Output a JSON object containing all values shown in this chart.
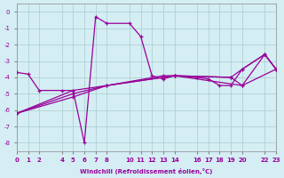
{
  "xlabel": "Windchill (Refroidissement éolien,°C)",
  "background_color": "#d4eef4",
  "grid_color": "#aacccc",
  "line_color": "#990099",
  "xlim": [
    0,
    23
  ],
  "ylim": [
    -8.5,
    0.5
  ],
  "xticks": [
    0,
    1,
    2,
    4,
    5,
    6,
    7,
    8,
    10,
    11,
    12,
    13,
    14,
    16,
    17,
    18,
    19,
    20,
    22,
    23
  ],
  "yticks": [
    0,
    -1,
    -2,
    -3,
    -4,
    -5,
    -6,
    -7,
    -8
  ],
  "s1x": [
    0,
    1,
    2,
    4,
    5,
    6,
    7,
    8,
    10,
    11,
    12,
    13,
    14,
    16,
    17,
    18,
    19,
    20,
    22,
    23
  ],
  "s1y": [
    -3.7,
    -3.8,
    -4.8,
    -4.8,
    -4.8,
    -8.0,
    -0.3,
    -0.7,
    -0.7,
    -1.5,
    -3.9,
    -4.1,
    -3.9,
    -4.0,
    -4.1,
    -4.5,
    -4.5,
    -3.5,
    -2.6,
    -3.5
  ],
  "s2x": [
    0,
    5,
    8,
    13,
    14,
    19,
    20,
    22,
    23
  ],
  "s2y": [
    -6.2,
    -5.0,
    -4.5,
    -3.9,
    -3.9,
    -4.0,
    -3.5,
    -2.6,
    -3.5
  ],
  "s3x": [
    0,
    5,
    8,
    14,
    19,
    20,
    23
  ],
  "s3y": [
    -6.2,
    -5.2,
    -4.5,
    -3.9,
    -4.0,
    -4.5,
    -3.5
  ],
  "s4x": [
    0,
    5,
    14,
    20,
    22,
    23
  ],
  "s4y": [
    -6.2,
    -4.8,
    -3.9,
    -4.5,
    -2.6,
    -3.5
  ]
}
